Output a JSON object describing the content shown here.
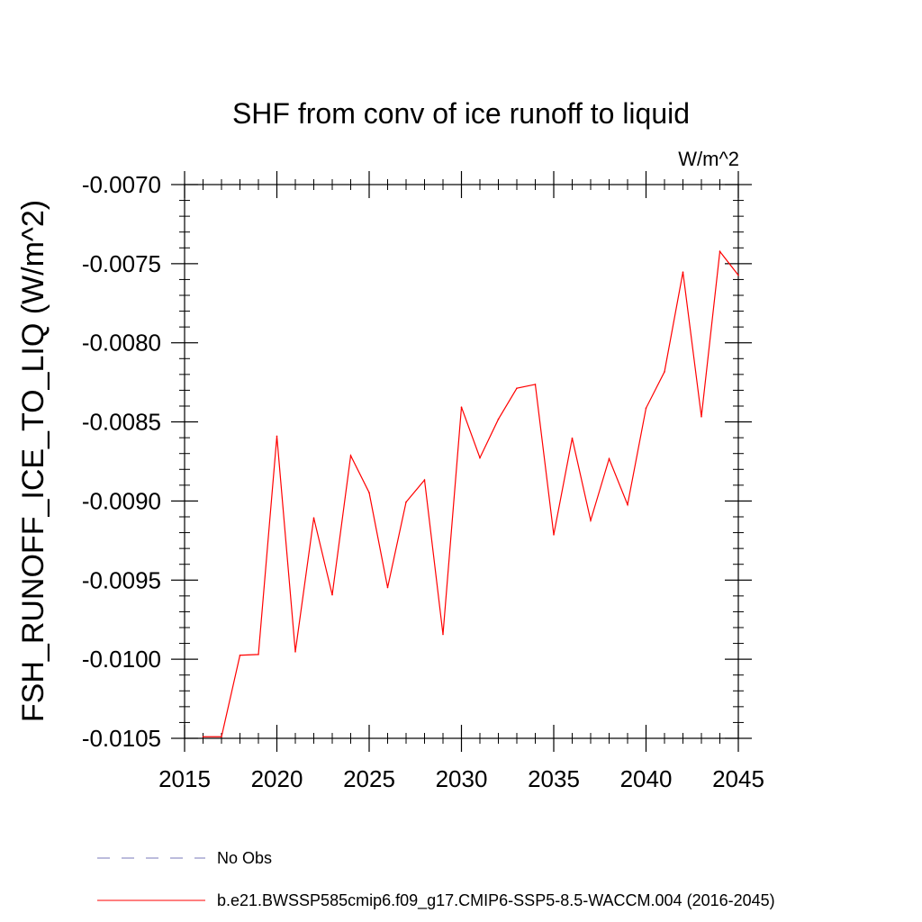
{
  "chart_data": {
    "type": "line",
    "title": "SHF from conv of ice runoff to liquid",
    "units_label": "W/m^2",
    "xlabel": "",
    "ylabel": "FSH_RUNOFF_ICE_TO_LIQ  (W/m^2)",
    "xlim": [
      2015,
      2045
    ],
    "ylim": [
      -0.0105,
      -0.007
    ],
    "x_ticks": [
      2015,
      2020,
      2025,
      2030,
      2035,
      2040,
      2045
    ],
    "x_tick_labels": [
      "2015",
      "2020",
      "2025",
      "2030",
      "2035",
      "2040",
      "2045"
    ],
    "y_ticks": [
      -0.0105,
      -0.01,
      -0.0095,
      -0.009,
      -0.0085,
      -0.008,
      -0.0075,
      -0.007
    ],
    "y_tick_labels": [
      "-0.0105",
      "-0.0100",
      "-0.0095",
      "-0.0090",
      "-0.0085",
      "-0.0080",
      "-0.0075",
      "-0.0070"
    ],
    "x_minor_step": 1,
    "y_minor_step": 0.0001,
    "grid": false,
    "legend_position": "bottom",
    "legend": [
      {
        "label": "No Obs",
        "style": "dashed",
        "color": "#7a7ab8"
      },
      {
        "label": "b.e21.BWSSP585cmip6.f09_g17.CMIP6-SSP5-8.5-WACCM.004 (2016-2045)",
        "style": "solid",
        "color": "#ff0000"
      }
    ],
    "series": [
      {
        "name": "b.e21.BWSSP585cmip6.f09_g17.CMIP6-SSP5-8.5-WACCM.004 (2016-2045)",
        "color": "#ff0000",
        "x": [
          2016,
          2017,
          2018,
          2019,
          2020,
          2021,
          2022,
          2023,
          2024,
          2025,
          2026,
          2027,
          2028,
          2029,
          2030,
          2031,
          2032,
          2033,
          2034,
          2035,
          2036,
          2037,
          2038,
          2039,
          2040,
          2041,
          2042,
          2043,
          2044,
          2045
        ],
        "y": [
          -0.01049,
          -0.01049,
          -0.009975,
          -0.00997,
          -0.00859,
          -0.009953,
          -0.009107,
          -0.009593,
          -0.008713,
          -0.008947,
          -0.009547,
          -0.009007,
          -0.008867,
          -0.009843,
          -0.008407,
          -0.008727,
          -0.008483,
          -0.008287,
          -0.008263,
          -0.009213,
          -0.008603,
          -0.009123,
          -0.008733,
          -0.009023,
          -0.008413,
          -0.008183,
          -0.007553,
          -0.008467,
          -0.007423,
          -0.007573
        ]
      }
    ]
  }
}
